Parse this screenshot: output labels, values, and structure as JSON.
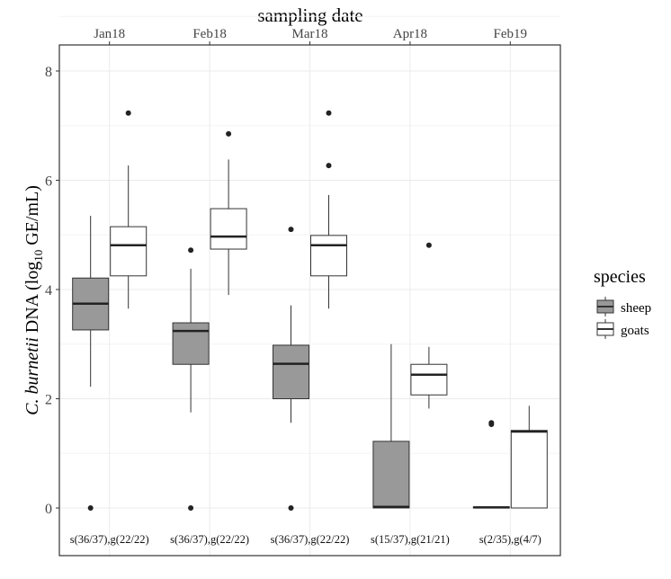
{
  "chart_data": {
    "type": "boxplot",
    "title": "sampling date",
    "ylabel_italic": "C. burnetii",
    "ylabel_rest": " DNA (log",
    "ylabel_sub": "10",
    "ylabel_end": " GE/mL)",
    "ylim": [
      0,
      8
    ],
    "yticks": [
      0,
      2,
      4,
      6,
      8
    ],
    "grid": true,
    "categories": [
      "Jan18",
      "Feb18",
      "Mar18",
      "Apr18",
      "Feb19"
    ],
    "count_labels": [
      "s(36/37),g(22/22)",
      "s(36/37),g(22/22)",
      "s(36/37),g(22/22)",
      "s(15/37),g(21/21)",
      "s(2/35),g(4/7)"
    ],
    "legend": {
      "title": "species",
      "position": "right"
    },
    "series": [
      {
        "name": "sheep",
        "color": "#999999",
        "boxes": [
          {
            "low": 2.22,
            "q1": 3.26,
            "median": 3.74,
            "q3": 4.21,
            "high": 5.35,
            "outliers": [
              0
            ]
          },
          {
            "low": 1.75,
            "q1": 2.63,
            "median": 3.24,
            "q3": 3.39,
            "high": 4.38,
            "outliers": [
              4.72,
              0
            ]
          },
          {
            "low": 1.56,
            "q1": 2.0,
            "median": 2.64,
            "q3": 2.98,
            "high": 3.71,
            "outliers": [
              5.1,
              0
            ]
          },
          {
            "low": 0,
            "q1": 0,
            "median": 0.02,
            "q3": 1.22,
            "high": 3.0,
            "outliers": []
          },
          {
            "low": 0,
            "q1": 0,
            "median": 0.01,
            "q3": 0.02,
            "high": 0.02,
            "outliers": [
              1.53,
              1.56
            ]
          }
        ]
      },
      {
        "name": "goats",
        "color": "#ffffff",
        "boxes": [
          {
            "low": 3.65,
            "q1": 4.25,
            "median": 4.81,
            "q3": 5.15,
            "high": 6.27,
            "outliers": [
              7.23
            ]
          },
          {
            "low": 3.9,
            "q1": 4.74,
            "median": 4.97,
            "q3": 5.48,
            "high": 6.38,
            "outliers": [
              6.85
            ]
          },
          {
            "low": 3.65,
            "q1": 4.25,
            "median": 4.81,
            "q3": 4.99,
            "high": 5.73,
            "outliers": [
              7.23,
              6.27
            ]
          },
          {
            "low": 1.82,
            "q1": 2.07,
            "median": 2.44,
            "q3": 2.63,
            "high": 2.95,
            "outliers": [
              4.81
            ]
          },
          {
            "low": 0,
            "q1": 0,
            "median": 1.4,
            "q3": 1.42,
            "high": 1.87,
            "outliers": []
          }
        ]
      }
    ]
  }
}
